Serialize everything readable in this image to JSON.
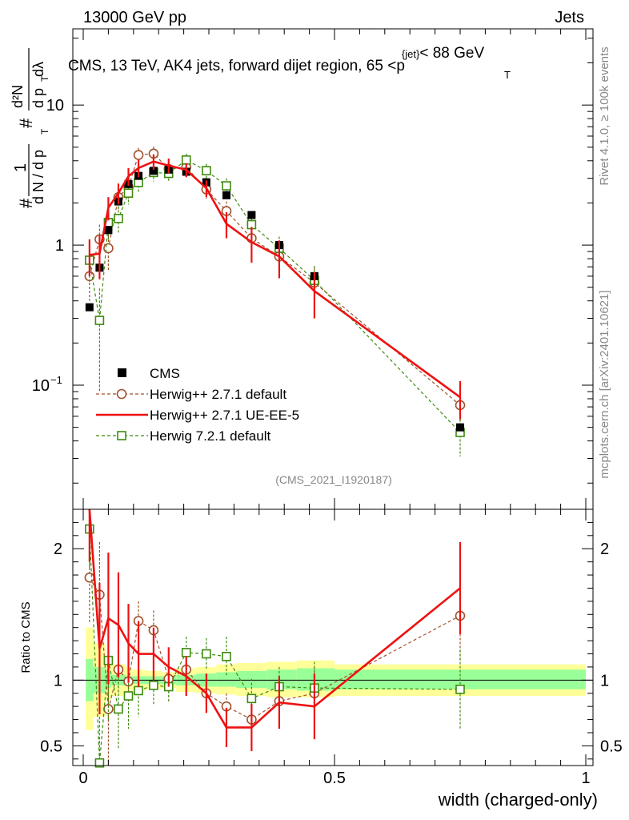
{
  "header": {
    "left": "13000 GeV pp",
    "right": "Jets"
  },
  "side_labels": {
    "rivet": "Rivet 4.1.0, ≥ 100k events",
    "mcplots": "mcplots.cern.ch [arXiv:2401.10621]"
  },
  "chart_data": {
    "type": "line",
    "title_parts": {
      "pre": "CMS, 13 TeV, AK4 jets, forward dijet region, 65 <",
      "p": "p",
      "sub": "T",
      "sup": "{jet}",
      "post": "< 88 GeV"
    },
    "analysis_id": "(CMS_2021_I1920187)",
    "xlabel": "width (charged-only)",
    "ylabel_top": {
      "prefix": "#",
      "frac1_num": "1",
      "frac1_den": "d N / d p",
      "frac1_den_sub": "T",
      "mid": "#",
      "frac2_num": "d²N",
      "frac2_den": "d p",
      "frac2_den_sub": "T",
      "frac2_den_end": " dλ"
    },
    "ylabel_bottom": "Ratio to CMS",
    "xlim": [
      0.0,
      1.0
    ],
    "ylim_top_log": [
      0.013,
      35
    ],
    "ylim_bottom": [
      0.35,
      2.3
    ],
    "x_ticks": [
      {
        "v": 0,
        "label": "0"
      },
      {
        "v": 0.5,
        "label": "0.5"
      },
      {
        "v": 1,
        "label": "1"
      }
    ],
    "y_ticks_top": [
      {
        "v": 0.1,
        "label": "10",
        "sup": "−1"
      },
      {
        "v": 1,
        "label": "1"
      },
      {
        "v": 10,
        "label": "10"
      }
    ],
    "y_ticks_bottom": [
      {
        "v": 0.5,
        "label": "0.5"
      },
      {
        "v": 1,
        "label": "1"
      },
      {
        "v": 2,
        "label": "2"
      }
    ],
    "x": [
      0.0125,
      0.0325,
      0.05,
      0.07,
      0.09,
      0.11,
      0.14,
      0.17,
      0.205,
      0.245,
      0.285,
      0.335,
      0.39,
      0.46,
      0.75
    ],
    "data_bin_edges": [
      0.005,
      0.02,
      0.045,
      0.055,
      0.085,
      0.095,
      0.125,
      0.155,
      0.185,
      0.225,
      0.265,
      0.305,
      0.365,
      0.425,
      0.5,
      1.0
    ],
    "legend": [
      {
        "name": "CMS",
        "style": "data"
      },
      {
        "name": "Herwig++ 2.7.1 default",
        "style": "circle-dashed",
        "color": "#a0522d"
      },
      {
        "name": "Herwig++ 2.7.1 UE-EE-5",
        "style": "solid",
        "color": "#ee1111"
      },
      {
        "name": "Herwig 7.2.1 default",
        "style": "square-dashed",
        "color": "#3d8b0f"
      }
    ],
    "band_colors": {
      "stat": "#99ff99",
      "total": "#ffff99"
    },
    "cms": {
      "values": [
        0.36,
        0.69,
        1.28,
        2.05,
        2.73,
        3.12,
        3.39,
        3.46,
        3.34,
        2.81,
        2.27,
        1.64,
        1.0,
        0.6,
        0.05
      ],
      "band_stat_low": [
        0.84,
        0.9,
        0.94,
        0.96,
        0.97,
        0.97,
        0.97,
        0.97,
        0.96,
        0.95,
        0.95,
        0.94,
        0.93,
        0.92,
        0.93
      ],
      "band_stat_high": [
        1.16,
        1.1,
        1.06,
        1.04,
        1.03,
        1.03,
        1.03,
        1.03,
        1.04,
        1.05,
        1.06,
        1.07,
        1.08,
        1.09,
        1.08
      ],
      "band_tot_low": [
        0.62,
        0.72,
        0.85,
        0.88,
        0.9,
        0.92,
        0.93,
        0.94,
        0.91,
        0.9,
        0.89,
        0.88,
        0.87,
        0.87,
        0.88
      ],
      "band_tot_high": [
        1.4,
        1.28,
        1.15,
        1.12,
        1.1,
        1.08,
        1.07,
        1.06,
        1.09,
        1.1,
        1.12,
        1.13,
        1.14,
        1.15,
        1.12
      ]
    },
    "series": [
      {
        "name": "Herwig++ 2.7.1 default",
        "values": [
          0.6,
          1.1,
          0.95,
          2.2,
          2.6,
          4.4,
          4.5,
          3.5,
          3.6,
          2.5,
          1.75,
          1.12,
          0.83,
          0.54,
          0.072
        ],
        "err_low": [
          0.2,
          0.3,
          0.3,
          0.4,
          0.45,
          0.55,
          0.55,
          0.4,
          0.4,
          0.35,
          0.3,
          0.25,
          0.2,
          0.15,
          0.025
        ],
        "err_high": [
          0.2,
          0.3,
          0.3,
          0.4,
          0.45,
          0.55,
          0.55,
          0.4,
          0.4,
          0.35,
          0.3,
          0.25,
          0.2,
          0.15,
          0.025
        ],
        "ratio": [
          1.78,
          1.65,
          0.78,
          1.08,
          0.99,
          1.45,
          1.38,
          1.01,
          1.08,
          0.9,
          0.8,
          0.7,
          0.84,
          0.9,
          1.49
        ],
        "ratio_err": [
          0.35,
          0.4,
          0.5,
          0.18,
          0.15,
          0.15,
          0.15,
          0.1,
          0.1,
          0.1,
          0.1,
          0.12,
          0.15,
          0.2,
          0.35
        ]
      },
      {
        "name": "Herwig++ 2.7.1 UE-EE-5",
        "values": [
          0.85,
          0.87,
          1.85,
          2.35,
          3.1,
          3.55,
          3.95,
          3.7,
          3.45,
          2.55,
          1.42,
          1.05,
          0.83,
          0.47,
          0.082
        ],
        "err_low": [
          0.25,
          0.3,
          0.35,
          0.4,
          0.45,
          0.5,
          0.5,
          0.45,
          0.4,
          0.35,
          0.3,
          0.3,
          0.25,
          0.17,
          0.025
        ],
        "err_high": [
          0.25,
          0.3,
          0.35,
          0.4,
          0.45,
          0.5,
          0.5,
          0.45,
          0.4,
          0.35,
          0.3,
          0.3,
          0.25,
          0.17,
          0.025
        ],
        "ratio": [
          2.3,
          1.24,
          1.47,
          1.42,
          1.28,
          1.2,
          1.2,
          1.1,
          1.03,
          0.9,
          0.64,
          0.64,
          0.83,
          0.8,
          1.7
        ],
        "ratio_err": [
          0.4,
          0.5,
          0.5,
          0.4,
          0.3,
          0.25,
          0.2,
          0.15,
          0.15,
          0.15,
          0.15,
          0.18,
          0.2,
          0.25,
          0.35
        ]
      },
      {
        "name": "Herwig 7.2.1 default",
        "values": [
          0.78,
          0.29,
          1.45,
          1.55,
          2.35,
          2.8,
          3.3,
          3.25,
          4.05,
          3.4,
          2.65,
          1.4,
          0.95,
          0.56,
          0.046
        ],
        "err_low": [
          0.25,
          0.2,
          0.35,
          0.35,
          0.4,
          0.45,
          0.45,
          0.4,
          0.45,
          0.4,
          0.35,
          0.25,
          0.2,
          0.15,
          0.015
        ],
        "err_high": [
          0.25,
          0.2,
          0.35,
          0.35,
          0.4,
          0.45,
          0.45,
          0.4,
          0.45,
          0.4,
          0.35,
          0.25,
          0.2,
          0.15,
          0.015
        ],
        "ratio": [
          2.15,
          0.37,
          1.15,
          0.78,
          0.88,
          0.92,
          0.96,
          0.95,
          1.21,
          1.2,
          1.18,
          0.86,
          0.95,
          0.94,
          0.93
        ],
        "ratio_err": [
          0.3,
          0.35,
          0.45,
          0.3,
          0.25,
          0.2,
          0.15,
          0.12,
          0.12,
          0.12,
          0.15,
          0.15,
          0.15,
          0.2,
          0.3
        ]
      }
    ]
  }
}
